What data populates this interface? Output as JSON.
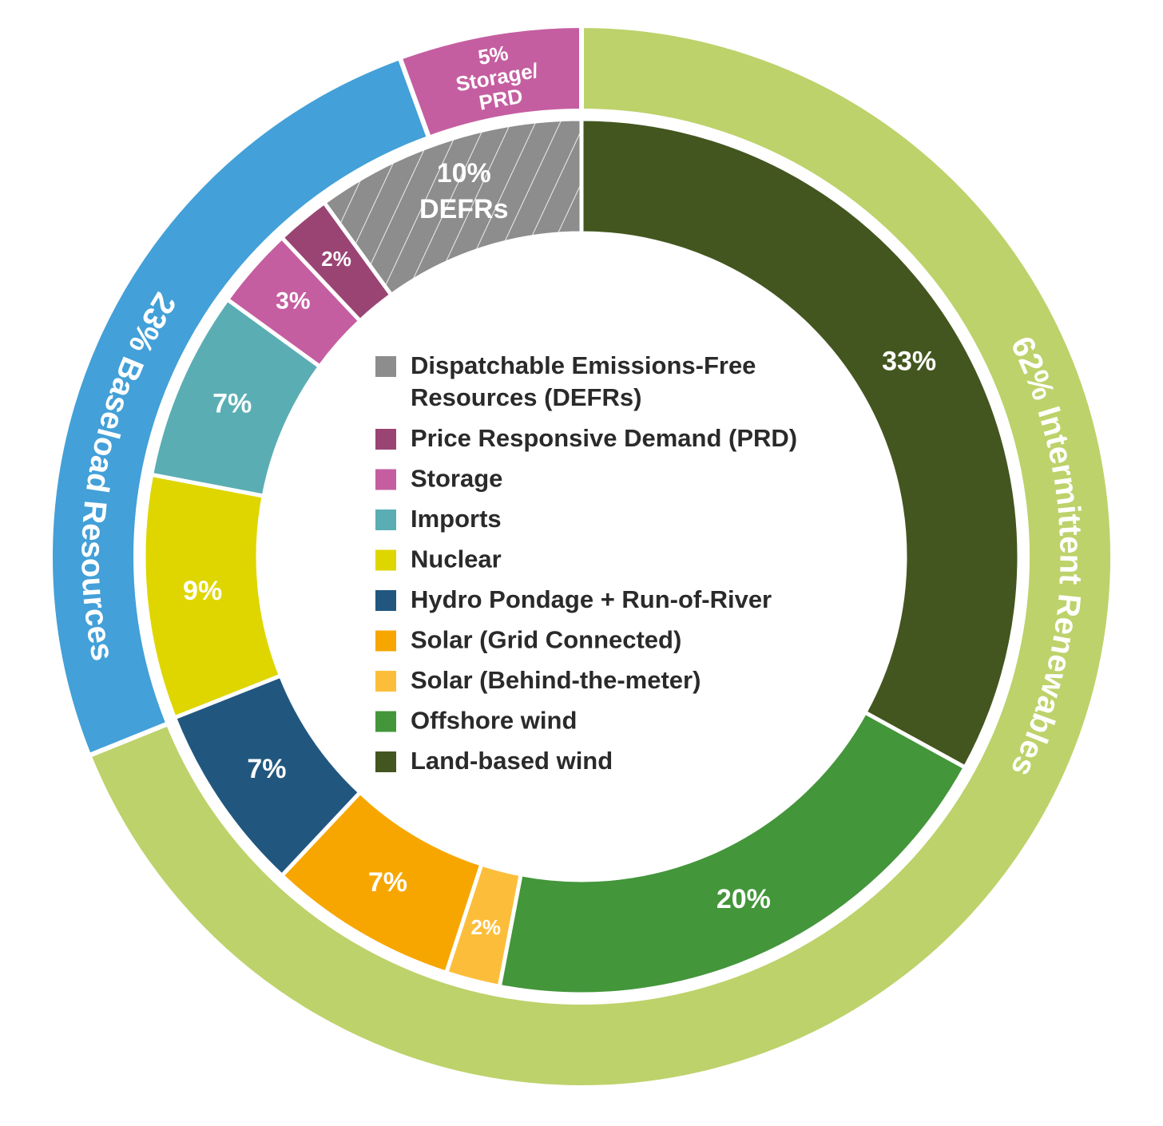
{
  "chart_data": {
    "type": "pie",
    "style": "nested-donut",
    "title": "",
    "inner_ring": [
      {
        "key": "land_wind",
        "name": "Land-based wind",
        "value": 33,
        "label": "33%",
        "color": "#43561f"
      },
      {
        "key": "offshore",
        "name": "Offshore wind",
        "value": 20,
        "label": "20%",
        "color": "#43963a"
      },
      {
        "key": "solar_btm",
        "name": "Solar (Behind-the-meter)",
        "value": 2,
        "label": "2%",
        "color": "#fcbe3a"
      },
      {
        "key": "solar_grid",
        "name": "Solar (Grid Connected)",
        "value": 7,
        "label": "7%",
        "color": "#f7a600"
      },
      {
        "key": "hydro",
        "name": "Hydro Pondage + Run-of-River",
        "value": 7,
        "label": "7%",
        "color": "#21577f"
      },
      {
        "key": "nuclear",
        "name": "Nuclear",
        "value": 9,
        "label": "9%",
        "color": "#dfd600"
      },
      {
        "key": "imports",
        "name": "Imports",
        "value": 7,
        "label": "7%",
        "color": "#5aaeb3"
      },
      {
        "key": "storage",
        "name": "Storage",
        "value": 3,
        "label": "3%",
        "color": "#c55ea0"
      },
      {
        "key": "prd",
        "name": "Price Responsive Demand (PRD)",
        "value": 2,
        "label": "2%",
        "color": "#9a4474"
      },
      {
        "key": "defrs",
        "name": "Dispatchable Emissions-Free Resources (DEFRs)",
        "value": 10,
        "label": "10%",
        "sublabel": "DEFRs",
        "color": "#8d8d8d",
        "hatched": true
      }
    ],
    "outer_ring": [
      {
        "key": "intermittent",
        "name": "Intermittent Renewables",
        "value": 62,
        "label": "62% Intermittent Renewables",
        "color": "#bdd26a"
      },
      {
        "key": "baseload",
        "name": "Baseload Resources",
        "value": 23,
        "label": "23% Baseload Resources",
        "color": "#43a0d8"
      },
      {
        "key": "storage_prd",
        "name": "Storage/PRD",
        "value": 5,
        "label_lines": [
          "5%",
          "Storage/",
          "PRD"
        ],
        "color": "#c55ea0"
      }
    ],
    "legend": {
      "placement": "center",
      "items": [
        {
          "lines": [
            "Dispatchable Emissions-Free",
            "Resources (DEFRs)"
          ],
          "color": "#8d8d8d"
        },
        {
          "lines": [
            "Price Responsive Demand (PRD)"
          ],
          "color": "#9a4474"
        },
        {
          "lines": [
            "Storage"
          ],
          "color": "#c55ea0"
        },
        {
          "lines": [
            "Imports"
          ],
          "color": "#5aaeb3"
        },
        {
          "lines": [
            "Nuclear"
          ],
          "color": "#dfd600"
        },
        {
          "lines": [
            "Hydro Pondage + Run-of-River"
          ],
          "color": "#21577f"
        },
        {
          "lines": [
            "Solar (Grid Connected)"
          ],
          "color": "#f7a600"
        },
        {
          "lines": [
            "Solar (Behind-the-meter)"
          ],
          "color": "#fcbe3a"
        },
        {
          "lines": [
            "Offshore wind"
          ],
          "color": "#43963a"
        },
        {
          "lines": [
            "Land-based wind"
          ],
          "color": "#43561f"
        }
      ]
    }
  }
}
